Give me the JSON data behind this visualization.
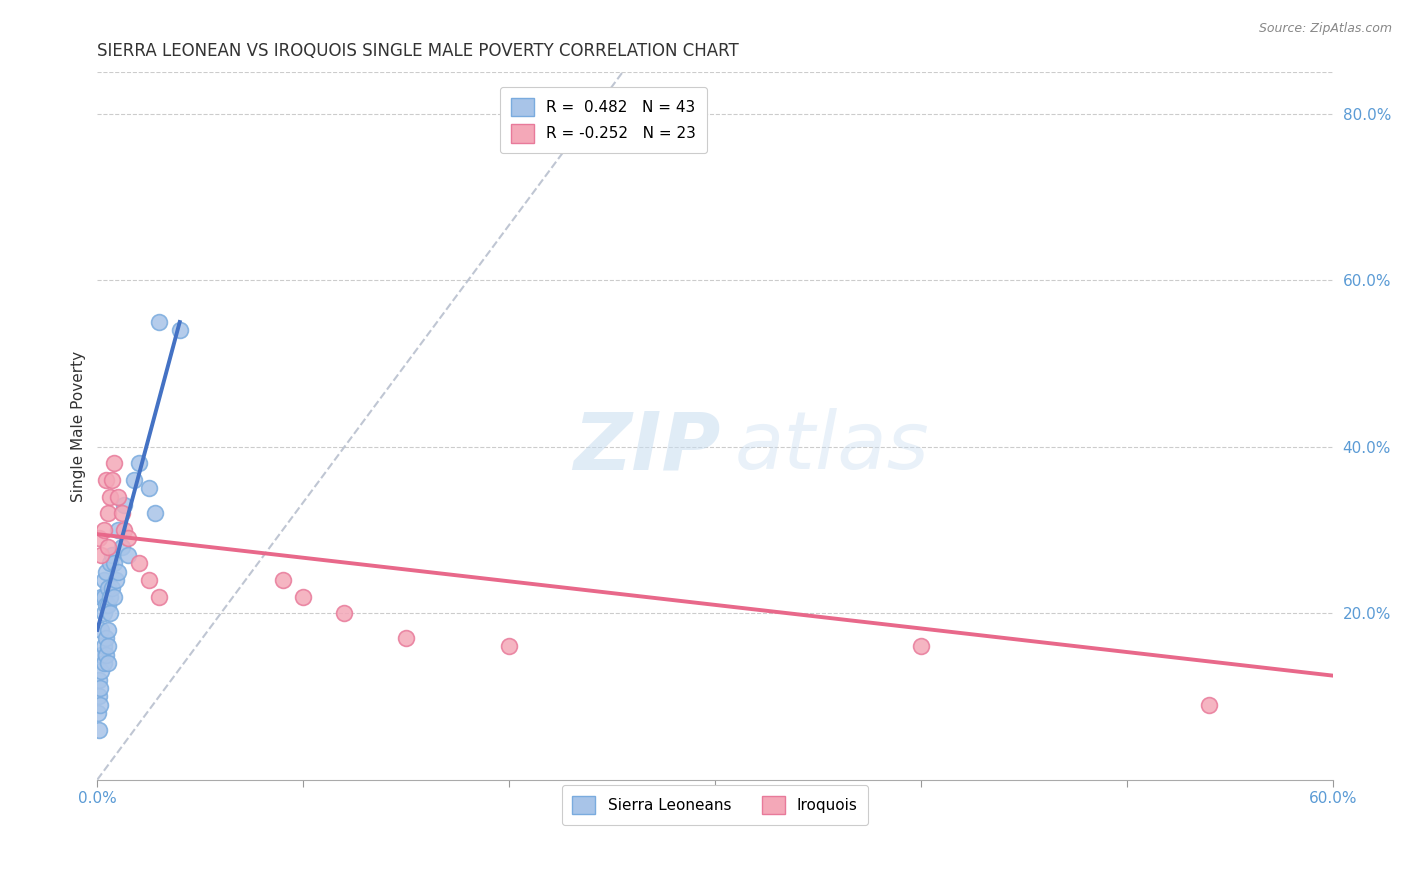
{
  "title": "SIERRA LEONEAN VS IROQUOIS SINGLE MALE POVERTY CORRELATION CHART",
  "source": "Source: ZipAtlas.com",
  "ylabel": "Single Male Poverty",
  "xlim": [
    0.0,
    0.6
  ],
  "ylim": [
    0.0,
    0.85
  ],
  "y_ticks_right": [
    0.2,
    0.4,
    0.6,
    0.8
  ],
  "y_tick_labels_right": [
    "20.0%",
    "40.0%",
    "60.0%",
    "80.0%"
  ],
  "sierra_x": [
    0.0005,
    0.001,
    0.001,
    0.001,
    0.0015,
    0.0015,
    0.002,
    0.002,
    0.002,
    0.002,
    0.003,
    0.003,
    0.003,
    0.003,
    0.003,
    0.004,
    0.004,
    0.004,
    0.004,
    0.005,
    0.005,
    0.005,
    0.005,
    0.005,
    0.006,
    0.006,
    0.006,
    0.007,
    0.007,
    0.008,
    0.008,
    0.009,
    0.01,
    0.01,
    0.012,
    0.013,
    0.015,
    0.018,
    0.02,
    0.025,
    0.028,
    0.03,
    0.04
  ],
  "sierra_y": [
    0.08,
    0.1,
    0.12,
    0.06,
    0.09,
    0.11,
    0.13,
    0.15,
    0.18,
    0.22,
    0.14,
    0.16,
    0.2,
    0.22,
    0.24,
    0.15,
    0.17,
    0.21,
    0.25,
    0.14,
    0.16,
    0.18,
    0.21,
    0.23,
    0.2,
    0.22,
    0.26,
    0.23,
    0.27,
    0.22,
    0.26,
    0.24,
    0.25,
    0.3,
    0.28,
    0.33,
    0.27,
    0.36,
    0.38,
    0.35,
    0.32,
    0.55,
    0.54
  ],
  "iroquois_x": [
    0.001,
    0.002,
    0.003,
    0.004,
    0.005,
    0.005,
    0.006,
    0.007,
    0.008,
    0.01,
    0.012,
    0.013,
    0.015,
    0.02,
    0.025,
    0.03,
    0.09,
    0.1,
    0.12,
    0.15,
    0.2,
    0.4,
    0.54
  ],
  "iroquois_y": [
    0.29,
    0.27,
    0.3,
    0.36,
    0.28,
    0.32,
    0.34,
    0.36,
    0.38,
    0.34,
    0.32,
    0.3,
    0.29,
    0.26,
    0.24,
    0.22,
    0.24,
    0.22,
    0.2,
    0.17,
    0.16,
    0.16,
    0.09
  ],
  "blue_line_x": [
    0.0,
    0.04
  ],
  "blue_line_y_start": 0.18,
  "blue_line_y_end": 0.55,
  "pink_line_x": [
    0.0,
    0.6
  ],
  "pink_line_y_start": 0.295,
  "pink_line_y_end": 0.125,
  "ref_line_x": [
    0.0,
    0.255
  ],
  "ref_line_y": [
    0.0,
    0.85
  ],
  "blue_line_color": "#4472c4",
  "pink_line_color": "#e8688a",
  "blue_dot_color": "#a8c4e8",
  "pink_dot_color": "#f4a8b8",
  "blue_dot_edge": "#7aabde",
  "pink_dot_edge": "#e87a9a",
  "legend_r1": "R =  0.482   N = 43",
  "legend_r2": "R = -0.252   N = 23",
  "background_color": "#ffffff",
  "grid_color": "#cccccc",
  "tick_color": "#5b9bd5",
  "title_fontsize": 12,
  "source_fontsize": 9
}
